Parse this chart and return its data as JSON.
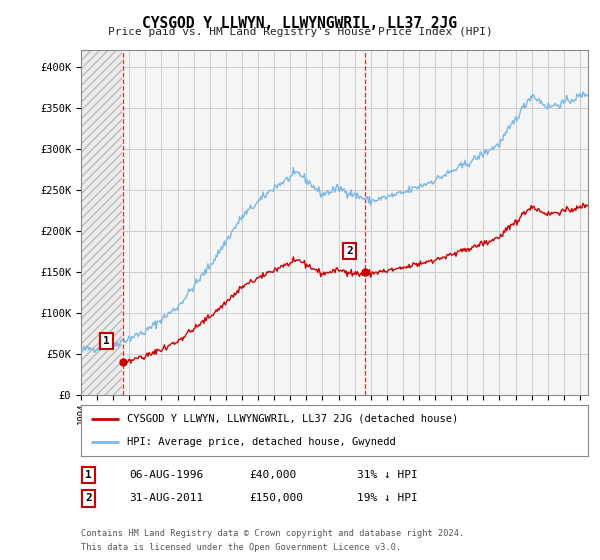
{
  "title": "CYSGOD Y LLWYN, LLWYNGWRIL, LL37 2JG",
  "subtitle": "Price paid vs. HM Land Registry's House Price Index (HPI)",
  "ylabel_ticks": [
    "£0",
    "£50K",
    "£100K",
    "£150K",
    "£200K",
    "£250K",
    "£300K",
    "£350K",
    "£400K"
  ],
  "ytick_values": [
    0,
    50000,
    100000,
    150000,
    200000,
    250000,
    300000,
    350000,
    400000
  ],
  "ylim": [
    0,
    420000
  ],
  "xlim_start": 1994.0,
  "xlim_end": 2025.5,
  "hpi_color": "#7ab8e8",
  "price_color": "#cc0000",
  "legend_line1": "CYSGOD Y LLWYN, LLWYNGWRIL, LL37 2JG (detached house)",
  "legend_line2": "HPI: Average price, detached house, Gwynedd",
  "annotation1_num": "1",
  "annotation1_date": "06-AUG-1996",
  "annotation1_price": "£40,000",
  "annotation1_hpi": "31% ↓ HPI",
  "annotation2_num": "2",
  "annotation2_date": "31-AUG-2011",
  "annotation2_price": "£150,000",
  "annotation2_hpi": "19% ↓ HPI",
  "footnote1": "Contains HM Land Registry data © Crown copyright and database right 2024.",
  "footnote2": "This data is licensed under the Open Government Licence v3.0.",
  "background_color": "#ffffff",
  "plot_bg_color": "#f5f5f5",
  "grid_color": "#cccccc",
  "border_color": "#888888",
  "marker1_x": 1996.58,
  "marker1_y": 40000,
  "marker2_x": 2011.67,
  "marker2_y": 150000,
  "price1": 40000,
  "price2": 150000
}
